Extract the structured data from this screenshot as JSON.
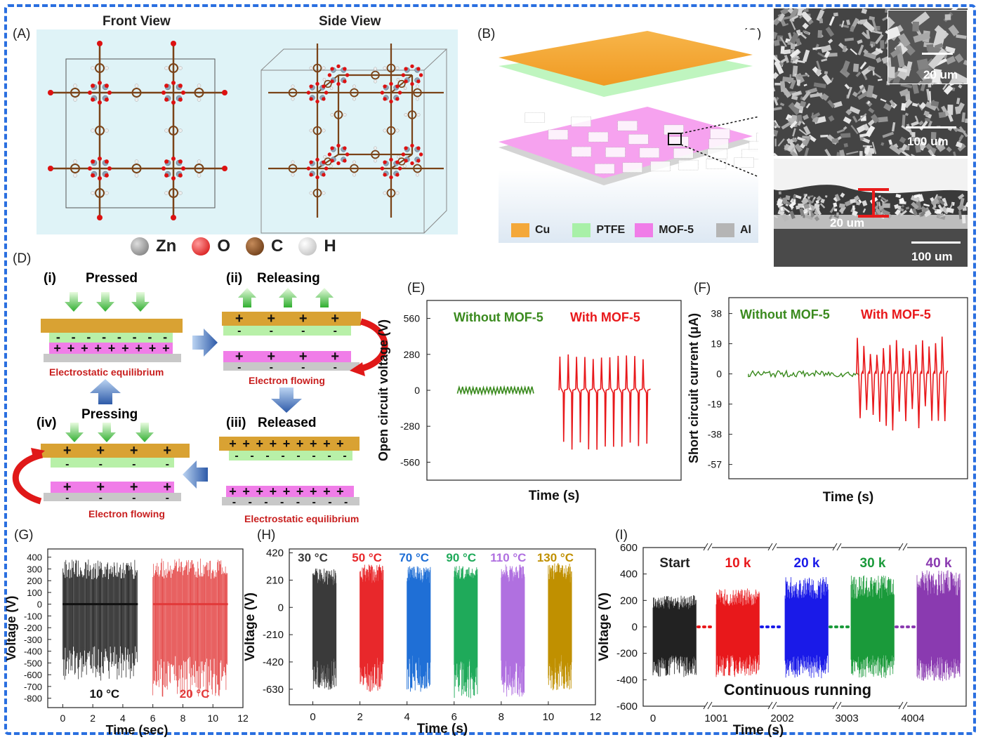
{
  "panels": {
    "A": "(A)",
    "B": "(B)",
    "C": "(C)",
    "D": "(D)",
    "E": "(E)",
    "F": "(F)",
    "G": "(G)",
    "H": "(H)",
    "I": "(I)"
  },
  "panelA": {
    "front_view": "Front View",
    "side_view": "Side View",
    "legend": [
      {
        "label": "Zn",
        "color": "#8e8e8e"
      },
      {
        "label": "O",
        "color": "#e21b1b"
      },
      {
        "label": "C",
        "color": "#7a4318"
      },
      {
        "label": "H",
        "color": "#e8e8e8"
      }
    ]
  },
  "panelB": {
    "legend": [
      {
        "label": "Cu",
        "color": "#f4a83a"
      },
      {
        "label": "PTFE",
        "color": "#a8f0a8"
      },
      {
        "label": "MOF-5",
        "color": "#f07de8"
      },
      {
        "label": "Al",
        "color": "#b5b5b5"
      }
    ]
  },
  "panelC": {
    "inset_scale": "20 um",
    "top_scale": "100 um",
    "thickness": "20 um",
    "bottom_scale": "100 um"
  },
  "panelD": {
    "i": "(i)",
    "pressed": "Pressed",
    "ii": "(ii)",
    "releasing": "Releasing",
    "iii": "(iii)",
    "released": "Released",
    "iv": "(iv)",
    "pressing": "Pressing",
    "eq1": "Electrostatic equilibrium",
    "flow1": "Electron flowing",
    "flow2": "Electron flowing",
    "eq2": "Electrostatic equilibrium"
  },
  "chart_data": [
    {
      "id": "E",
      "type": "line",
      "xlabel": "Time (s)",
      "ylabel": "Open circuit voltage (V)",
      "yticks": [
        560,
        280,
        0,
        -280,
        -560
      ],
      "ylim": [
        -700,
        700
      ],
      "series": [
        {
          "name": "Without MOF-5",
          "color": "#3a8a1e",
          "amplitude": [
            -30,
            30
          ]
        },
        {
          "name": "With MOF-5",
          "color": "#e8181b",
          "amplitude": [
            -470,
            280
          ],
          "peaks": 11
        }
      ]
    },
    {
      "id": "F",
      "type": "line",
      "xlabel": "Time (s)",
      "ylabel": "Short circuit current (μA)",
      "yticks": [
        38,
        19,
        0,
        -19,
        -38,
        -57
      ],
      "ylim": [
        -66,
        48
      ],
      "series": [
        {
          "name": "Without MOF-5",
          "color": "#3a8a1e",
          "amplitude": [
            -2,
            2
          ]
        },
        {
          "name": "With MOF-5",
          "color": "#e8181b",
          "amplitude": [
            -38,
            24
          ]
        }
      ]
    },
    {
      "id": "G",
      "type": "line",
      "xlabel": "Time (sec)",
      "ylabel": "Voltage (V)",
      "xticks": [
        0,
        2,
        4,
        6,
        8,
        10,
        12
      ],
      "xlim": [
        -1,
        12
      ],
      "yticks": [
        400,
        300,
        200,
        100,
        0,
        -100,
        -200,
        -300,
        -400,
        -500,
        -600,
        -700,
        -800
      ],
      "ylim": [
        -880,
        470
      ],
      "series": [
        {
          "name": "10 °C",
          "color": "#111111",
          "x": [
            0,
            5
          ],
          "amplitude": [
            -650,
            380
          ]
        },
        {
          "name": "20 °C",
          "color": "#e23a3a",
          "x": [
            6,
            11
          ],
          "amplitude": [
            -800,
            390
          ]
        }
      ]
    },
    {
      "id": "H",
      "type": "line",
      "xlabel": "Time (s)",
      "ylabel": "Voltage (V)",
      "xticks": [
        0,
        2,
        4,
        6,
        8,
        10,
        12
      ],
      "xlim": [
        -1,
        12
      ],
      "yticks": [
        420,
        210,
        0,
        -210,
        -420,
        -630
      ],
      "ylim": [
        -750,
        450
      ],
      "series": [
        {
          "name": "30 °C",
          "color": "#3a3a3a",
          "x": [
            0,
            1
          ],
          "amplitude": [
            -640,
            300
          ]
        },
        {
          "name": "50 °C",
          "color": "#e8282b",
          "x": [
            2,
            3
          ],
          "amplitude": [
            -650,
            330
          ]
        },
        {
          "name": "70 °C",
          "color": "#1f6fd6",
          "x": [
            4,
            5
          ],
          "amplitude": [
            -650,
            320
          ]
        },
        {
          "name": "90 °C",
          "color": "#1faa5a",
          "x": [
            6,
            7
          ],
          "amplitude": [
            -700,
            320
          ]
        },
        {
          "name": "110 °C",
          "color": "#b070e0",
          "x": [
            8,
            9
          ],
          "amplitude": [
            -690,
            330
          ]
        },
        {
          "name": "130 °C",
          "color": "#c09000",
          "x": [
            10,
            11
          ],
          "amplitude": [
            -640,
            340
          ]
        }
      ]
    },
    {
      "id": "I",
      "type": "line",
      "xlabel": "Time (s)",
      "ylabel": "Voltage (V)",
      "xticks": [
        "0",
        "1001",
        "2002",
        "3003",
        "4004"
      ],
      "yticks": [
        600,
        400,
        200,
        0,
        -200,
        -400,
        -600
      ],
      "ylim": [
        -600,
        600
      ],
      "annotation": "Continuous running",
      "series": [
        {
          "name": "Start",
          "color": "#222222",
          "amplitude": [
            -380,
            240
          ]
        },
        {
          "name": "10 k",
          "color": "#e8181b",
          "amplitude": [
            -380,
            290
          ]
        },
        {
          "name": "20 k",
          "color": "#1a1ae8",
          "amplitude": [
            -390,
            380
          ]
        },
        {
          "name": "30 k",
          "color": "#1a9a3a",
          "amplitude": [
            -390,
            390
          ]
        },
        {
          "name": "40 k",
          "color": "#8a3ab0",
          "amplitude": [
            -410,
            430
          ]
        }
      ]
    }
  ]
}
